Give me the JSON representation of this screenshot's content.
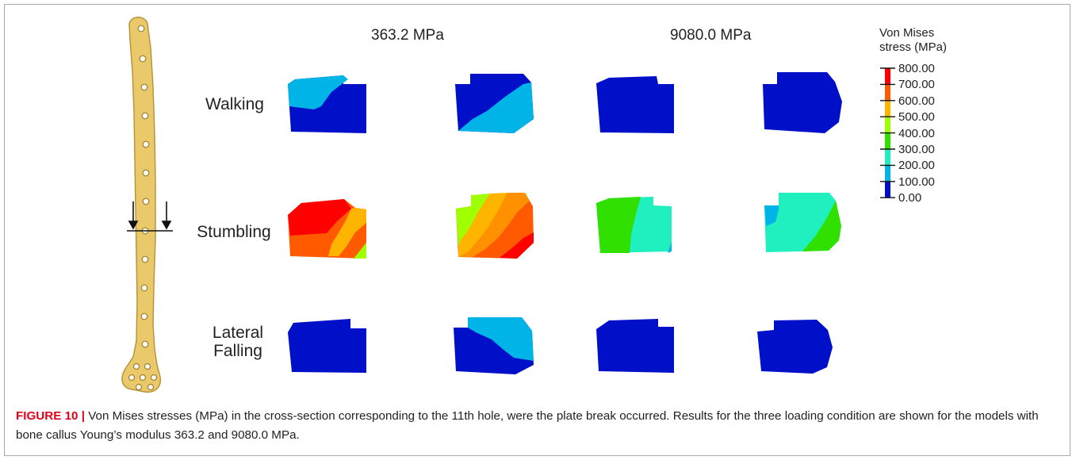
{
  "columns": {
    "young_363": "363.2 MPa",
    "young_9080": "9080.0 MPa"
  },
  "rows": {
    "walking": "Walking",
    "stumbling": "Stumbling",
    "lateral_line1": "Lateral",
    "lateral_line2": "Falling"
  },
  "legend": {
    "title_line1": "Von Mises",
    "title_line2": "stress (MPa)",
    "ticks": [
      "800.00",
      "700.00",
      "600.00",
      "500.00",
      "400.00",
      "300.00",
      "200.00",
      "100.00",
      "0.00"
    ],
    "colors": [
      "#ff0000",
      "#ff5a00",
      "#ffb400",
      "#a0ff00",
      "#30e000",
      "#20f0c0",
      "#00b4e8",
      "#0010c8"
    ]
  },
  "caption": {
    "label": "FIGURE 10 |",
    "text": "Von Mises stresses (MPa) in the cross-section corresponding to the 11th hole, were the plate break occurred. Results for the three loading condition are shown for the models with bone callus Young’s modulus 363.2 and 9080.0 MPa."
  }
}
